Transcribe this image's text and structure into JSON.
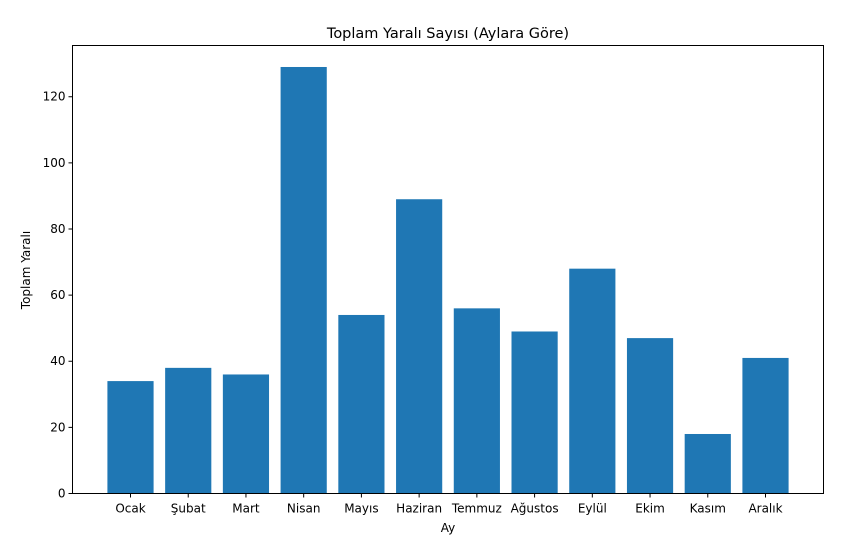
{
  "chart_data": {
    "type": "bar",
    "title": "Toplam Yaralı Sayısı (Aylara Göre)",
    "xlabel": "Ay",
    "ylabel": "Toplam Yaralı",
    "categories": [
      "Ocak",
      "Şubat",
      "Mart",
      "Nisan",
      "Mayıs",
      "Haziran",
      "Temmuz",
      "Ağustos",
      "Eylül",
      "Ekim",
      "Kasım",
      "Aralık"
    ],
    "values": [
      34,
      38,
      36,
      129,
      54,
      89,
      56,
      49,
      68,
      47,
      18,
      41
    ],
    "ylim": [
      0,
      135.5
    ],
    "yticks": [
      0,
      20,
      40,
      60,
      80,
      100,
      120
    ],
    "bar_color": "#1f77b4",
    "grid": false
  }
}
